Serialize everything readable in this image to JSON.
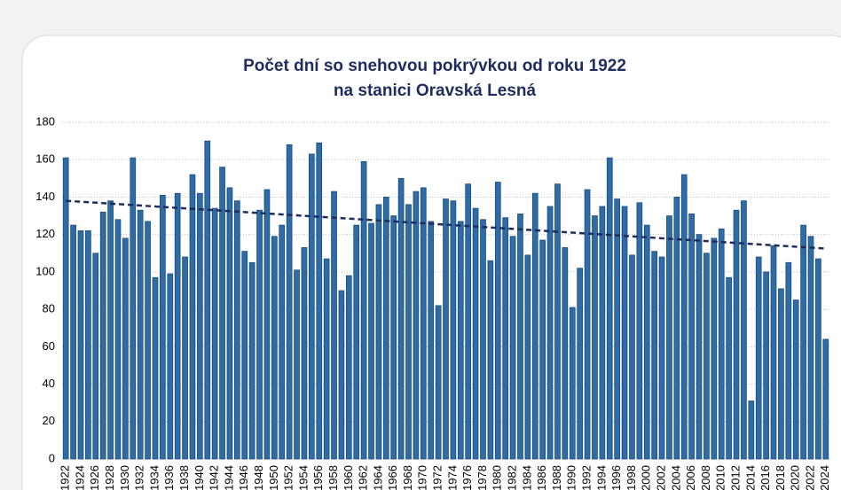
{
  "chart_data": {
    "type": "bar",
    "title": [
      "Počet dní so snehovou pokrývkou od roku 1922",
      "na stanici Oravská Lesná"
    ],
    "categories": [
      "1922",
      null,
      "1924",
      null,
      "1926",
      null,
      "1928",
      null,
      "1930",
      null,
      "1932",
      null,
      "1934",
      null,
      "1936",
      null,
      "1938",
      null,
      "1940",
      null,
      "1942",
      null,
      "1944",
      null,
      "1946",
      null,
      "1948",
      null,
      "1950",
      null,
      "1952",
      null,
      "1954",
      null,
      "1956",
      null,
      "1958",
      null,
      "1960",
      null,
      "1962",
      null,
      "1964",
      null,
      "1966",
      null,
      "1968",
      null,
      "1970",
      null,
      "1972",
      null,
      "1974",
      null,
      "1976",
      null,
      "1978",
      null,
      "1980",
      null,
      "1982",
      null,
      "1984",
      null,
      "1986",
      null,
      "1988",
      null,
      "1990",
      null,
      "1992",
      null,
      "1994",
      null,
      "1996",
      null,
      "1998",
      null,
      "2000",
      null,
      "2002",
      null,
      "2004",
      null,
      "2006",
      null,
      "2008",
      null,
      "2010",
      null,
      "2012",
      null,
      "2014",
      null,
      "2016",
      null,
      "2018",
      null,
      "2020",
      null,
      "2022",
      null,
      "2024"
    ],
    "values": [
      161,
      125,
      122,
      122,
      110,
      132,
      138,
      128,
      118,
      161,
      133,
      127,
      97,
      141,
      99,
      142,
      108,
      152,
      142,
      170,
      134,
      156,
      145,
      138,
      111,
      105,
      133,
      144,
      119,
      125,
      168,
      101,
      113,
      163,
      169,
      107,
      143,
      90,
      98,
      125,
      159,
      126,
      136,
      140,
      130,
      150,
      136,
      143,
      145,
      127,
      82,
      139,
      138,
      127,
      147,
      134,
      128,
      106,
      148,
      129,
      119,
      131,
      109,
      142,
      117,
      135,
      147,
      113,
      81,
      102,
      144,
      130,
      135,
      161,
      139,
      135,
      109,
      137,
      125,
      111,
      108,
      130,
      140,
      152,
      131,
      120,
      110,
      118,
      123,
      97,
      133,
      138,
      31,
      108,
      100,
      114,
      91,
      105,
      85,
      125,
      119,
      107,
      64
    ],
    "color": "#2e6ca8",
    "trend": [
      138,
      112.5
    ],
    "trend_color": "#1f2d5c",
    "ylim": [
      0,
      180
    ],
    "yticks": [
      0,
      20,
      40,
      60,
      80,
      100,
      120,
      140,
      160,
      180
    ],
    "grid": true
  }
}
